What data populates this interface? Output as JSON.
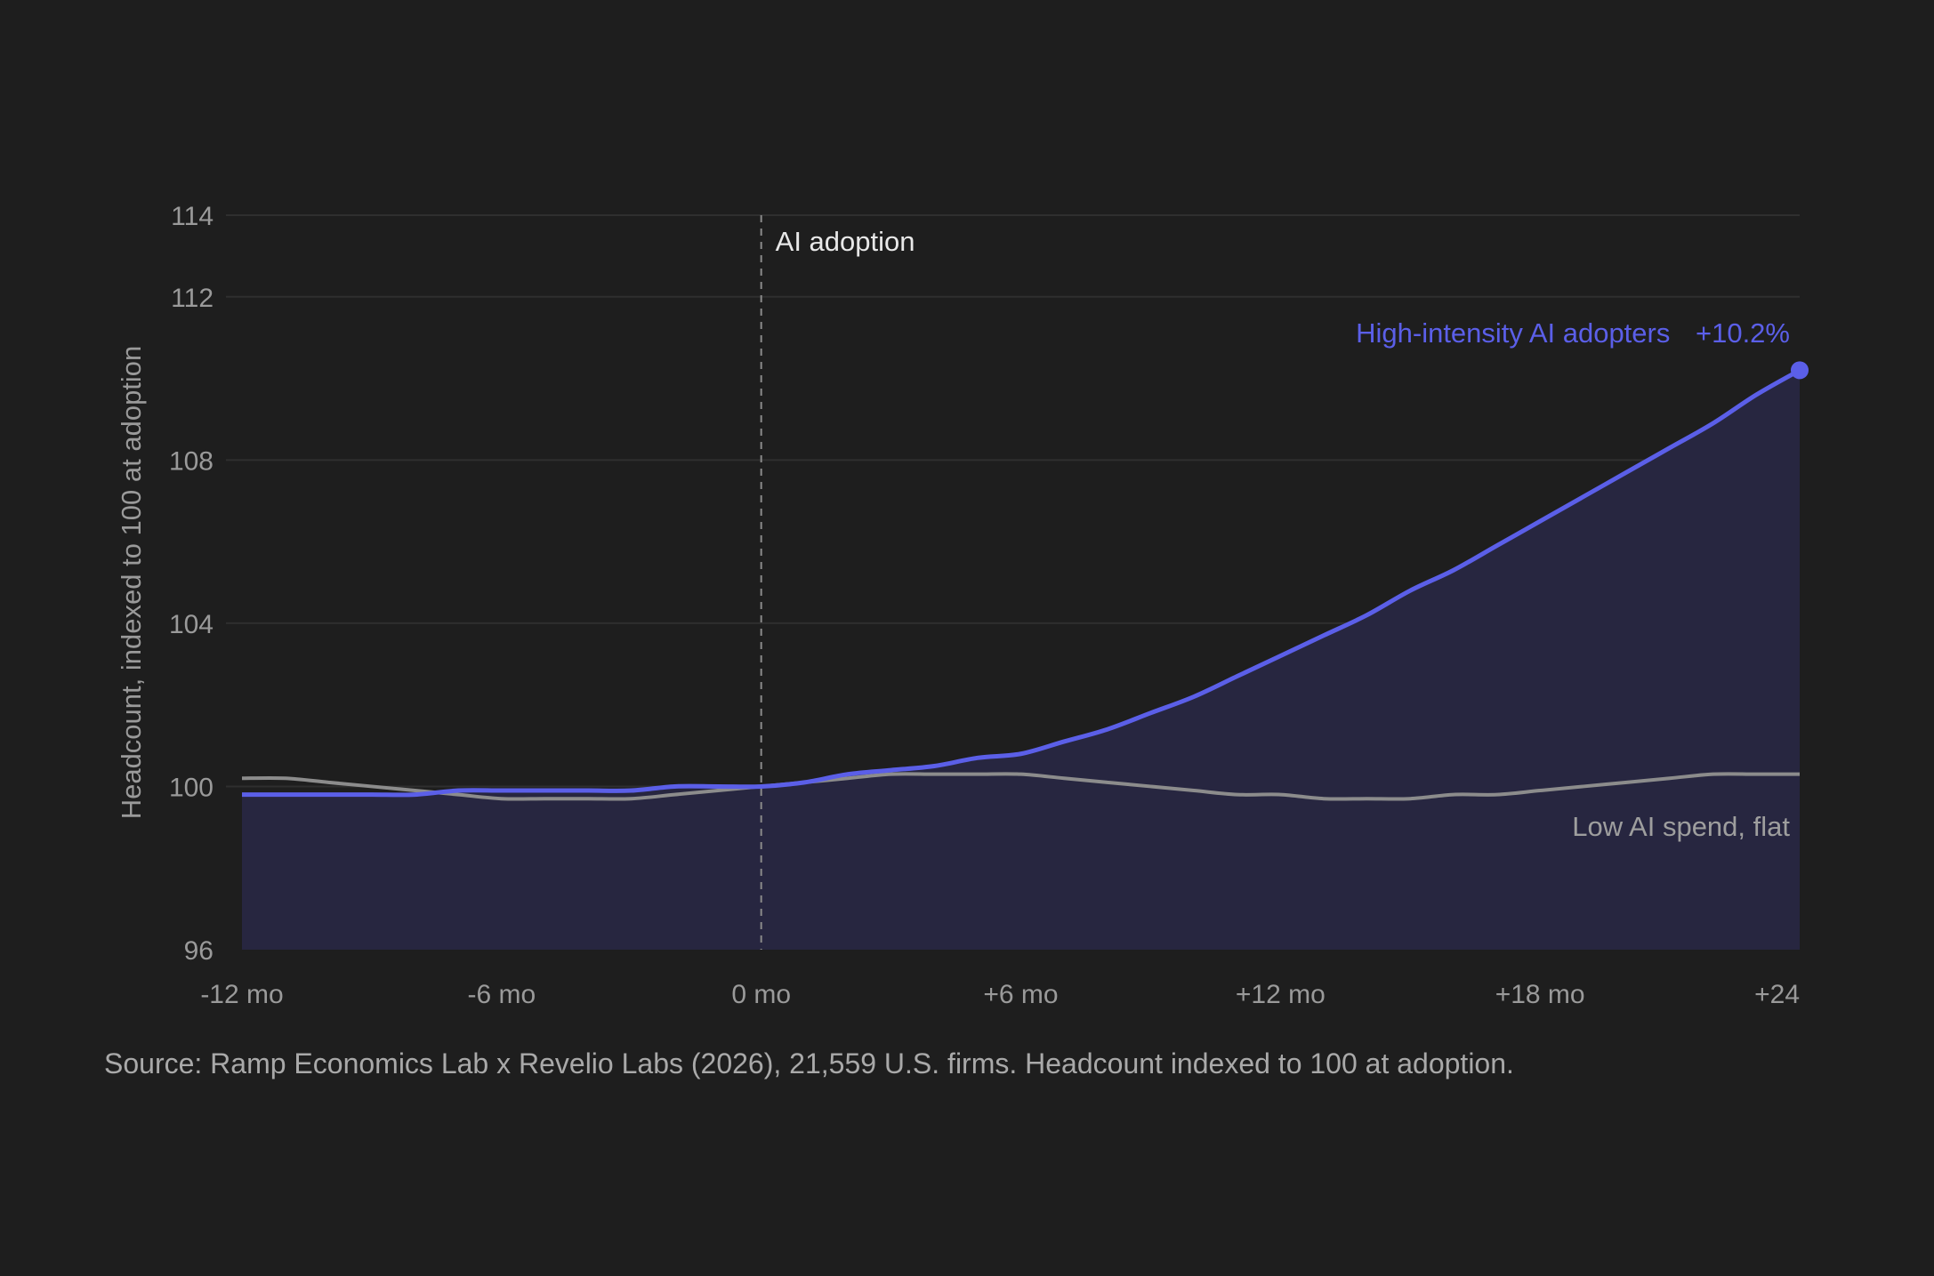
{
  "chart_data": {
    "type": "line",
    "title": "",
    "xlabel": "",
    "ylabel": "Headcount, indexed to 100 at adoption",
    "xlim": [
      -12,
      24
    ],
    "ylim": [
      96,
      114
    ],
    "grid": true,
    "x_ticks": [
      -12,
      -6,
      0,
      6,
      12,
      18,
      24
    ],
    "x_tick_labels": [
      "-12 mo",
      "-6 mo",
      "0 mo",
      "+6 mo",
      "+12 mo",
      "+18 mo",
      "+24"
    ],
    "y_ticks": [
      96,
      100,
      104,
      108,
      112,
      114
    ],
    "y_tick_labels": [
      "96",
      "100",
      "104",
      "108",
      "112",
      "114"
    ],
    "reference_line": {
      "x": 0,
      "label": "AI adoption"
    },
    "series": [
      {
        "name": "High-intensity AI adopters",
        "end_label": "+10.2%",
        "color": "#5b5fe8",
        "fill": true,
        "x": [
          -12,
          -11,
          -10,
          -9,
          -8,
          -7,
          -6,
          -5,
          -4,
          -3,
          -2,
          -1,
          0,
          1,
          2,
          3,
          4,
          5,
          6,
          7,
          8,
          9,
          10,
          11,
          12,
          13,
          14,
          15,
          16,
          17,
          18,
          19,
          20,
          21,
          22,
          23,
          24
        ],
        "values": [
          99.8,
          99.8,
          99.8,
          99.8,
          99.8,
          99.9,
          99.9,
          99.9,
          99.9,
          99.9,
          100.0,
          100.0,
          100.0,
          100.1,
          100.3,
          100.4,
          100.5,
          100.7,
          100.8,
          101.1,
          101.4,
          101.8,
          102.2,
          102.7,
          103.2,
          103.7,
          104.2,
          104.8,
          105.3,
          105.9,
          106.5,
          107.1,
          107.7,
          108.3,
          108.9,
          109.6,
          110.2
        ]
      },
      {
        "name": "Low AI spend, flat",
        "color": "#8c8c8c",
        "fill": false,
        "x": [
          -12,
          -11,
          -10,
          -9,
          -8,
          -7,
          -6,
          -5,
          -4,
          -3,
          -2,
          -1,
          0,
          1,
          2,
          3,
          4,
          5,
          6,
          7,
          8,
          9,
          10,
          11,
          12,
          13,
          14,
          15,
          16,
          17,
          18,
          19,
          20,
          21,
          22,
          23,
          24
        ],
        "values": [
          100.2,
          100.2,
          100.1,
          100.0,
          99.9,
          99.8,
          99.7,
          99.7,
          99.7,
          99.7,
          99.8,
          99.9,
          100.0,
          100.1,
          100.2,
          100.3,
          100.3,
          100.3,
          100.3,
          100.2,
          100.1,
          100.0,
          99.9,
          99.8,
          99.8,
          99.7,
          99.7,
          99.7,
          99.8,
          99.8,
          99.9,
          100.0,
          100.1,
          100.2,
          100.3,
          100.3,
          100.3
        ]
      }
    ],
    "source": "Source: Ramp Economics Lab x Revelio Labs (2026), 21,559 U.S. firms. Headcount indexed to 100 at adoption."
  }
}
